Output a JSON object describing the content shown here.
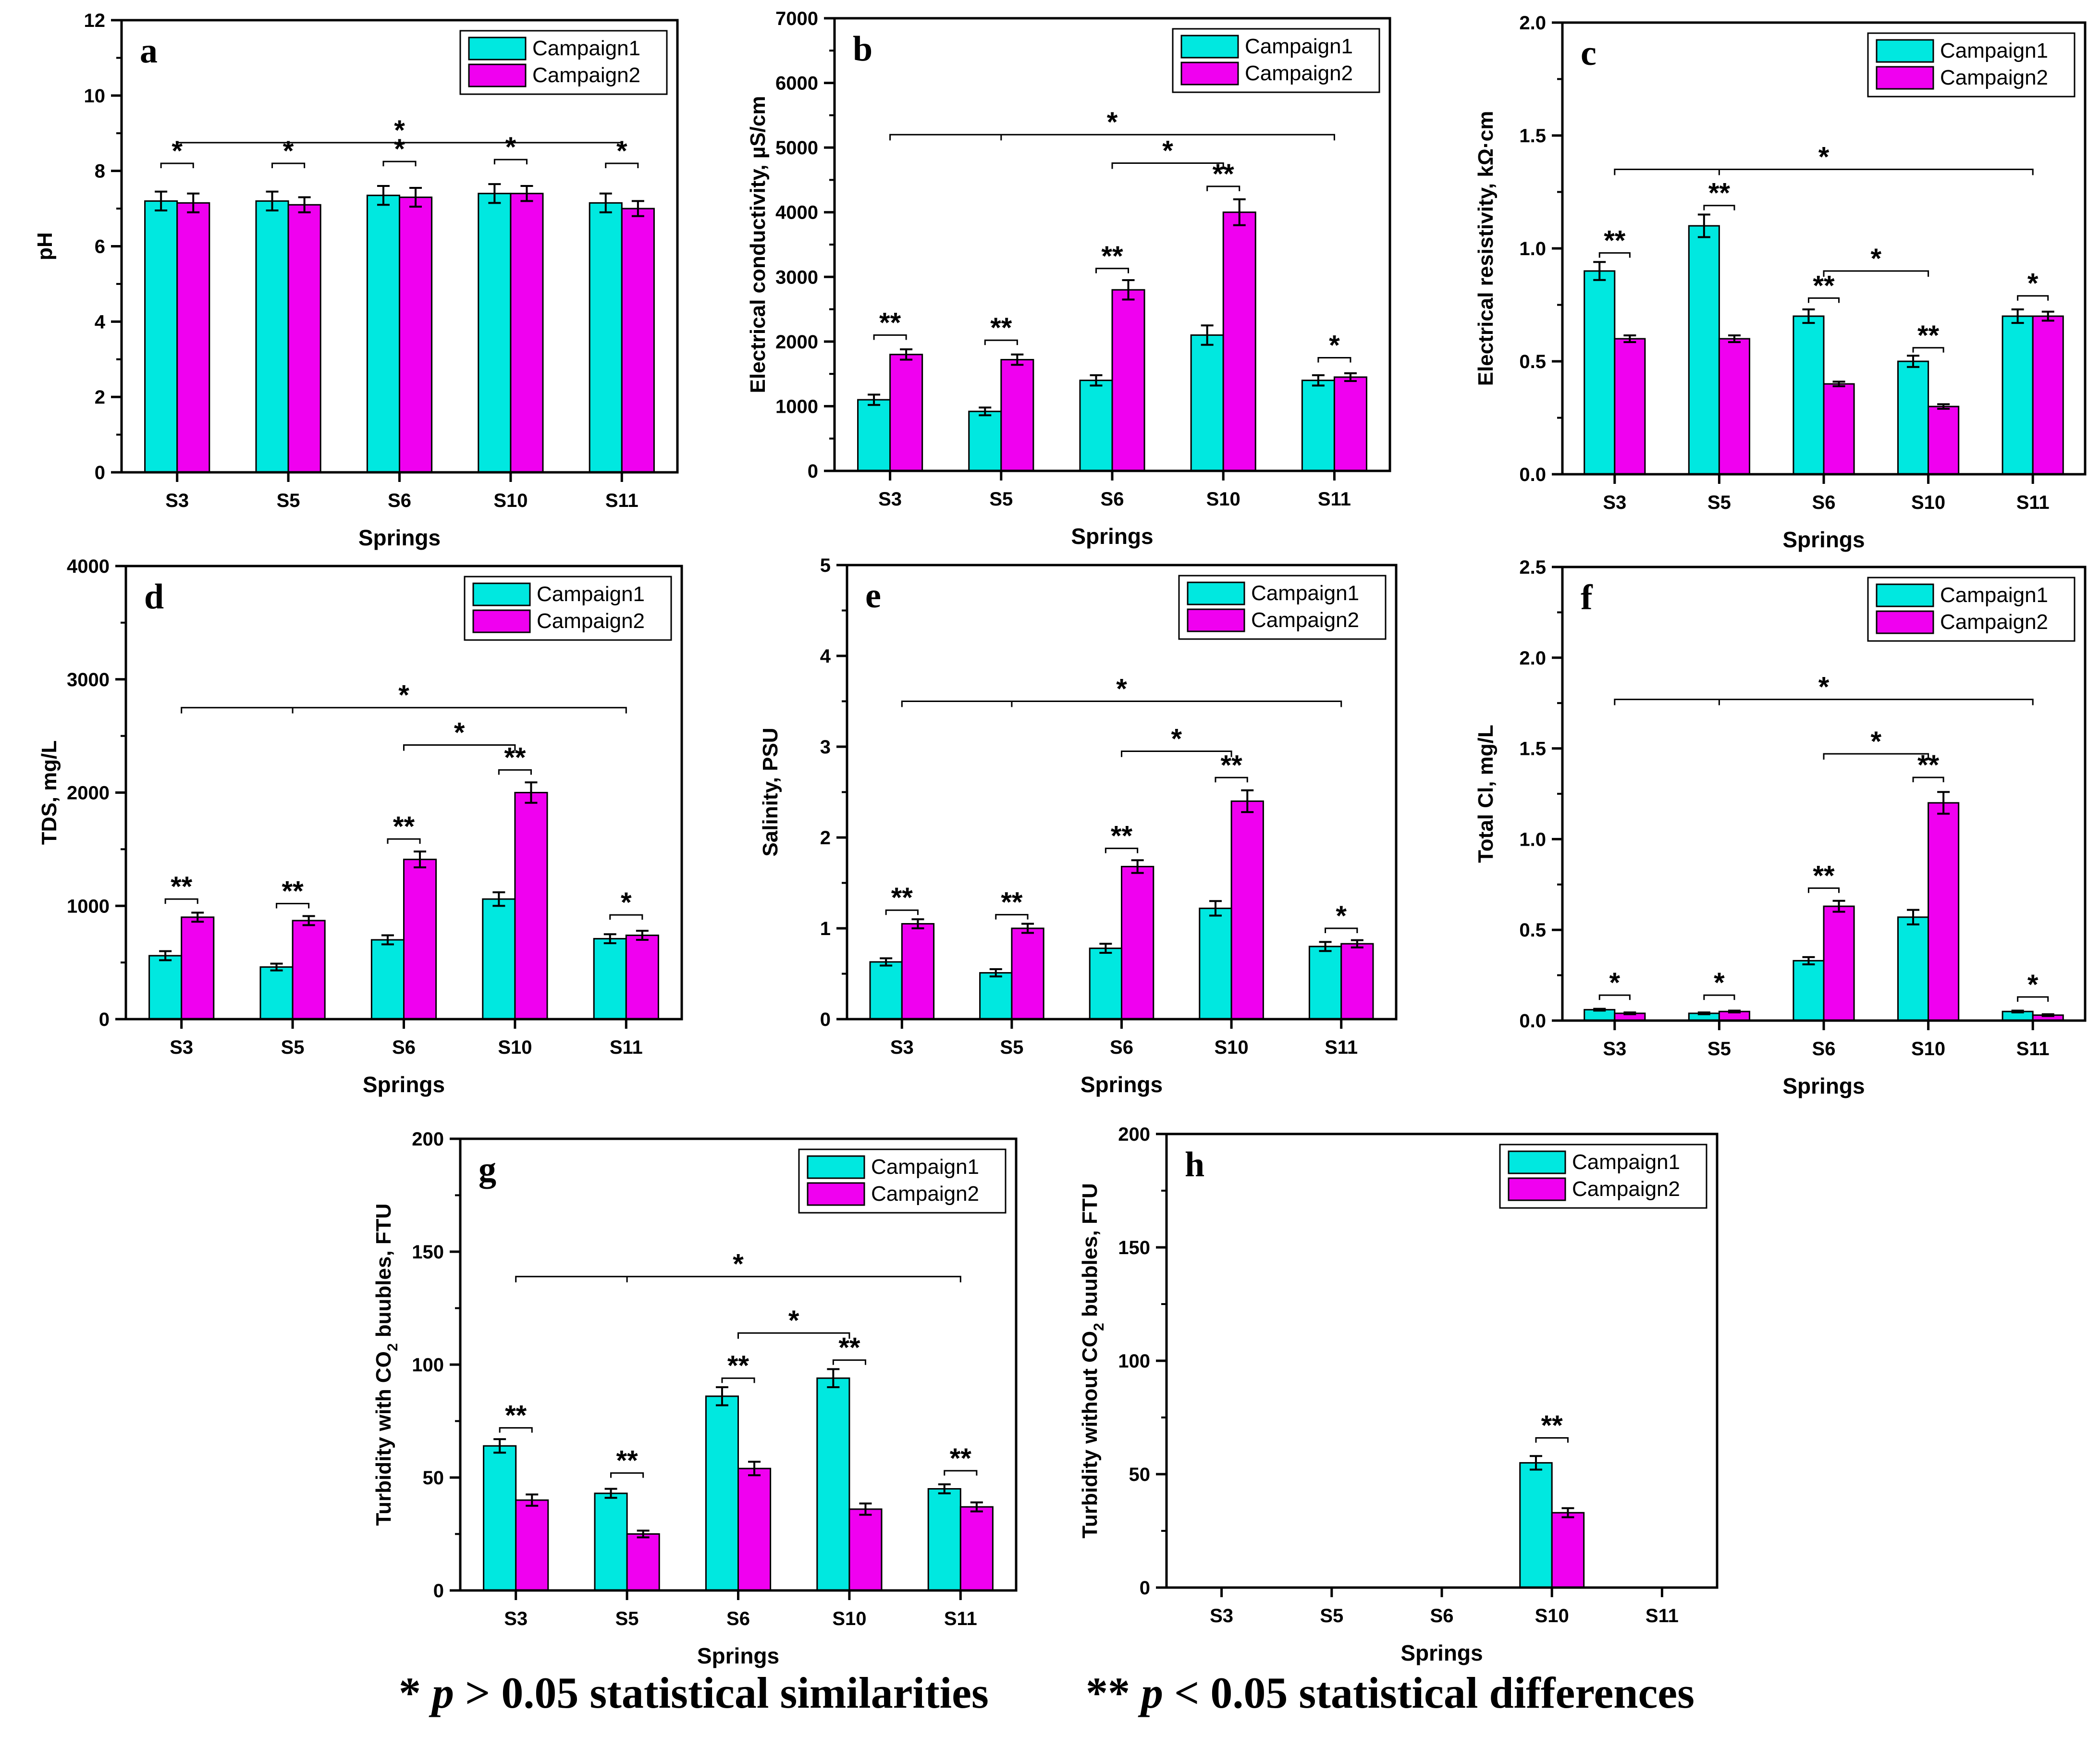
{
  "colors": {
    "campaign1": "#00e8e0",
    "campaign2": "#f000f0",
    "axis": "#000000"
  },
  "chart_data": [
    {
      "type": "bar",
      "panel_label": "a",
      "categories": [
        "S3",
        "S5",
        "S6",
        "S10",
        "S11"
      ],
      "series": [
        {
          "name": "Campaign1",
          "values": [
            7.2,
            7.2,
            7.35,
            7.4,
            7.15
          ],
          "errors": [
            0.25,
            0.25,
            0.25,
            0.25,
            0.25
          ]
        },
        {
          "name": "Campaign2",
          "values": [
            7.15,
            7.1,
            7.3,
            7.4,
            7.0
          ],
          "errors": [
            0.25,
            0.2,
            0.25,
            0.2,
            0.2
          ]
        }
      ],
      "xlabel": "Springs",
      "ylabel": "pH",
      "ylim": [
        0,
        12
      ],
      "yticks": [
        "0",
        "2",
        "4",
        "6",
        "8",
        "10",
        "12"
      ],
      "legend": "top-right",
      "annotations": [
        {
          "text": "*",
          "start": 0,
          "end": 0,
          "level": 8.2
        },
        {
          "text": "*",
          "start": 1,
          "end": 1,
          "level": 8.2
        },
        {
          "text": "*",
          "start": 2,
          "end": 2,
          "level": 8.25
        },
        {
          "text": "*",
          "start": 3,
          "end": 3,
          "level": 8.3
        },
        {
          "text": "*",
          "start": 4,
          "end": 4,
          "level": 8.2
        },
        {
          "text": "*",
          "start": 0,
          "end": 4,
          "level": 8.75,
          "span": true,
          "midtick": true
        }
      ]
    },
    {
      "type": "bar",
      "panel_label": "b",
      "categories": [
        "S3",
        "S5",
        "S6",
        "S10",
        "S11"
      ],
      "series": [
        {
          "name": "Campaign1",
          "values": [
            1100,
            920,
            1400,
            2100,
            1400
          ],
          "errors": [
            80,
            60,
            80,
            150,
            80
          ]
        },
        {
          "name": "Campaign2",
          "values": [
            1800,
            1720,
            2800,
            4000,
            1450
          ],
          "errors": [
            80,
            80,
            150,
            200,
            60
          ]
        }
      ],
      "xlabel": "Springs",
      "ylabel": "Electrical conductivity, µS/cm",
      "ylim": [
        0,
        7000
      ],
      "yticks": [
        "0",
        "1000",
        "2000",
        "3000",
        "4000",
        "5000",
        "6000",
        "7000"
      ],
      "legend": "top-right",
      "annotations": [
        {
          "text": "**",
          "start": 0,
          "end": 0,
          "level": 2100
        },
        {
          "text": "**",
          "start": 1,
          "end": 1,
          "level": 2020
        },
        {
          "text": "**",
          "start": 2,
          "end": 2,
          "level": 3130
        },
        {
          "text": "**",
          "start": 3,
          "end": 3,
          "level": 4400
        },
        {
          "text": "*",
          "start": 4,
          "end": 4,
          "level": 1750
        },
        {
          "text": "*",
          "start": 2,
          "end": 3,
          "level": 4760,
          "span": true
        },
        {
          "text": "*",
          "start": 0,
          "end": 4,
          "level": 5200,
          "span": true,
          "midtick": true
        }
      ]
    },
    {
      "type": "bar",
      "panel_label": "c",
      "categories": [
        "S3",
        "S5",
        "S6",
        "S10",
        "S11"
      ],
      "series": [
        {
          "name": "Campaign1",
          "values": [
            0.9,
            1.1,
            0.7,
            0.5,
            0.7
          ],
          "errors": [
            0.04,
            0.05,
            0.03,
            0.025,
            0.03
          ]
        },
        {
          "name": "Campaign2",
          "values": [
            0.6,
            0.6,
            0.4,
            0.3,
            0.7
          ],
          "errors": [
            0.015,
            0.015,
            0.01,
            0.01,
            0.02
          ]
        }
      ],
      "xlabel": "Springs",
      "ylabel": "Electrical resistivity, kΩ·cm",
      "ylim": [
        0,
        2.0
      ],
      "yticks": [
        "0.0",
        "0.5",
        "1.0",
        "1.5",
        "2.0"
      ],
      "legend": "top-right",
      "annotations": [
        {
          "text": "**",
          "start": 0,
          "end": 0,
          "level": 0.98
        },
        {
          "text": "**",
          "start": 1,
          "end": 1,
          "level": 1.19
        },
        {
          "text": "**",
          "start": 2,
          "end": 2,
          "level": 0.78
        },
        {
          "text": "**",
          "start": 3,
          "end": 3,
          "level": 0.56
        },
        {
          "text": "*",
          "start": 4,
          "end": 4,
          "level": 0.79
        },
        {
          "text": "*",
          "start": 2,
          "end": 3,
          "level": 0.9,
          "span": true
        },
        {
          "text": "*",
          "start": 0,
          "end": 4,
          "level": 1.35,
          "span": true,
          "midtick": true
        }
      ]
    },
    {
      "type": "bar",
      "panel_label": "d",
      "categories": [
        "S3",
        "S5",
        "S6",
        "S10",
        "S11"
      ],
      "series": [
        {
          "name": "Campaign1",
          "values": [
            560,
            460,
            700,
            1060,
            710
          ],
          "errors": [
            40,
            30,
            40,
            60,
            40
          ]
        },
        {
          "name": "Campaign2",
          "values": [
            900,
            870,
            1410,
            2000,
            740
          ],
          "errors": [
            40,
            40,
            70,
            90,
            40
          ]
        }
      ],
      "xlabel": "Springs",
      "ylabel": "TDS, mg/L",
      "ylim": [
        0,
        4000
      ],
      "yticks": [
        "0",
        "1000",
        "2000",
        "3000",
        "4000"
      ],
      "legend": "top-right",
      "annotations": [
        {
          "text": "**",
          "start": 0,
          "end": 0,
          "level": 1060
        },
        {
          "text": "**",
          "start": 1,
          "end": 1,
          "level": 1020
        },
        {
          "text": "**",
          "start": 2,
          "end": 2,
          "level": 1590
        },
        {
          "text": "**",
          "start": 3,
          "end": 3,
          "level": 2200
        },
        {
          "text": "*",
          "start": 4,
          "end": 4,
          "level": 920
        },
        {
          "text": "*",
          "start": 2,
          "end": 3,
          "level": 2420,
          "span": true
        },
        {
          "text": "*",
          "start": 0,
          "end": 4,
          "level": 2750,
          "span": true,
          "midtick": true
        }
      ]
    },
    {
      "type": "bar",
      "panel_label": "e",
      "categories": [
        "S3",
        "S5",
        "S6",
        "S10",
        "S11"
      ],
      "series": [
        {
          "name": "Campaign1",
          "values": [
            0.63,
            0.51,
            0.78,
            1.22,
            0.8
          ],
          "errors": [
            0.04,
            0.04,
            0.05,
            0.08,
            0.05
          ]
        },
        {
          "name": "Campaign2",
          "values": [
            1.05,
            1.0,
            1.68,
            2.4,
            0.83
          ],
          "errors": [
            0.05,
            0.05,
            0.07,
            0.12,
            0.04
          ]
        }
      ],
      "xlabel": "Springs",
      "ylabel": "Salinity, PSU",
      "ylim": [
        0,
        5
      ],
      "yticks": [
        "0",
        "1",
        "2",
        "3",
        "4",
        "5"
      ],
      "legend": "top-right",
      "annotations": [
        {
          "text": "**",
          "start": 0,
          "end": 0,
          "level": 1.2
        },
        {
          "text": "**",
          "start": 1,
          "end": 1,
          "level": 1.15
        },
        {
          "text": "**",
          "start": 2,
          "end": 2,
          "level": 1.88
        },
        {
          "text": "**",
          "start": 3,
          "end": 3,
          "level": 2.66
        },
        {
          "text": "*",
          "start": 4,
          "end": 4,
          "level": 1.0
        },
        {
          "text": "*",
          "start": 2,
          "end": 3,
          "level": 2.95,
          "span": true
        },
        {
          "text": "*",
          "start": 0,
          "end": 4,
          "level": 3.5,
          "span": true,
          "midtick": true
        }
      ]
    },
    {
      "type": "bar",
      "panel_label": "f",
      "categories": [
        "S3",
        "S5",
        "S6",
        "S10",
        "S11"
      ],
      "series": [
        {
          "name": "Campaign1",
          "values": [
            0.06,
            0.04,
            0.33,
            0.57,
            0.05
          ],
          "errors": [
            0.005,
            0.005,
            0.02,
            0.04,
            0.005
          ]
        },
        {
          "name": "Campaign2",
          "values": [
            0.04,
            0.05,
            0.63,
            1.2,
            0.03
          ],
          "errors": [
            0.005,
            0.005,
            0.03,
            0.06,
            0.005
          ]
        }
      ],
      "xlabel": "Springs",
      "ylabel": "Total Cl, mg/L",
      "ylim": [
        0,
        2.5
      ],
      "yticks": [
        "0.0",
        "0.5",
        "1.0",
        "1.5",
        "2.0",
        "2.5"
      ],
      "legend": "top-right",
      "annotations": [
        {
          "text": "*",
          "start": 0,
          "end": 0,
          "level": 0.14
        },
        {
          "text": "*",
          "start": 1,
          "end": 1,
          "level": 0.14
        },
        {
          "text": "**",
          "start": 2,
          "end": 2,
          "level": 0.73
        },
        {
          "text": "**",
          "start": 3,
          "end": 3,
          "level": 1.34
        },
        {
          "text": "*",
          "start": 4,
          "end": 4,
          "level": 0.13
        },
        {
          "text": "*",
          "start": 2,
          "end": 3,
          "level": 1.47,
          "span": true
        },
        {
          "text": "*",
          "start": 0,
          "end": 4,
          "level": 1.77,
          "span": true,
          "midtick": true
        }
      ]
    },
    {
      "type": "bar",
      "panel_label": "g",
      "categories": [
        "S3",
        "S5",
        "S6",
        "S10",
        "S11"
      ],
      "series": [
        {
          "name": "Campaign1",
          "values": [
            64,
            43,
            86,
            94,
            45
          ],
          "errors": [
            3,
            2,
            4,
            4,
            2
          ]
        },
        {
          "name": "Campaign2",
          "values": [
            40,
            25,
            54,
            36,
            37
          ],
          "errors": [
            2.5,
            1.5,
            3,
            2.5,
            2
          ]
        }
      ],
      "xlabel": "Springs",
      "ylabel": "Turbidity with CO2 buubles, FTU",
      "ylabel_main": "Turbidity with CO",
      "ylabel_sub": "2",
      "ylabel_tail": " buubles, FTU",
      "ylim": [
        0,
        200
      ],
      "yticks": [
        "0",
        "50",
        "100",
        "150",
        "200"
      ],
      "legend": "top-right",
      "annotations": [
        {
          "text": "**",
          "start": 0,
          "end": 0,
          "level": 72
        },
        {
          "text": "**",
          "start": 1,
          "end": 1,
          "level": 52
        },
        {
          "text": "**",
          "start": 2,
          "end": 2,
          "level": 94
        },
        {
          "text": "**",
          "start": 3,
          "end": 3,
          "level": 102
        },
        {
          "text": "**",
          "start": 4,
          "end": 4,
          "level": 53
        },
        {
          "text": "*",
          "start": 2,
          "end": 3,
          "level": 114,
          "span": true
        },
        {
          "text": "*",
          "start": 0,
          "end": 4,
          "level": 139,
          "span": true,
          "midtick": true
        }
      ]
    },
    {
      "type": "bar",
      "panel_label": "h",
      "categories": [
        "S3",
        "S5",
        "S6",
        "S10",
        "S11"
      ],
      "series": [
        {
          "name": "Campaign1",
          "values": [
            null,
            null,
            null,
            55,
            null
          ],
          "errors": [
            0,
            0,
            0,
            3,
            0
          ]
        },
        {
          "name": "Campaign2",
          "values": [
            null,
            null,
            null,
            33,
            null
          ],
          "errors": [
            0,
            0,
            0,
            2,
            0
          ]
        }
      ],
      "xlabel": "Springs",
      "ylabel": "Turbidity without CO2 buubles, FTU",
      "ylabel_main": "Turbidity without CO",
      "ylabel_sub": "2",
      "ylabel_tail": " buubles, FTU",
      "ylim": [
        0,
        200
      ],
      "yticks": [
        "0",
        "50",
        "100",
        "150",
        "200"
      ],
      "legend": "top-right",
      "annotations": [
        {
          "text": "**",
          "start": 3,
          "end": 3,
          "level": 66
        }
      ]
    }
  ],
  "footnote": {
    "similar_prefix": "* ",
    "similar_p": "p",
    "similar_text": " > 0.05 statistical similarities",
    "diff_prefix": "** ",
    "diff_p": "p",
    "diff_text": " < 0.05 statistical differences"
  }
}
